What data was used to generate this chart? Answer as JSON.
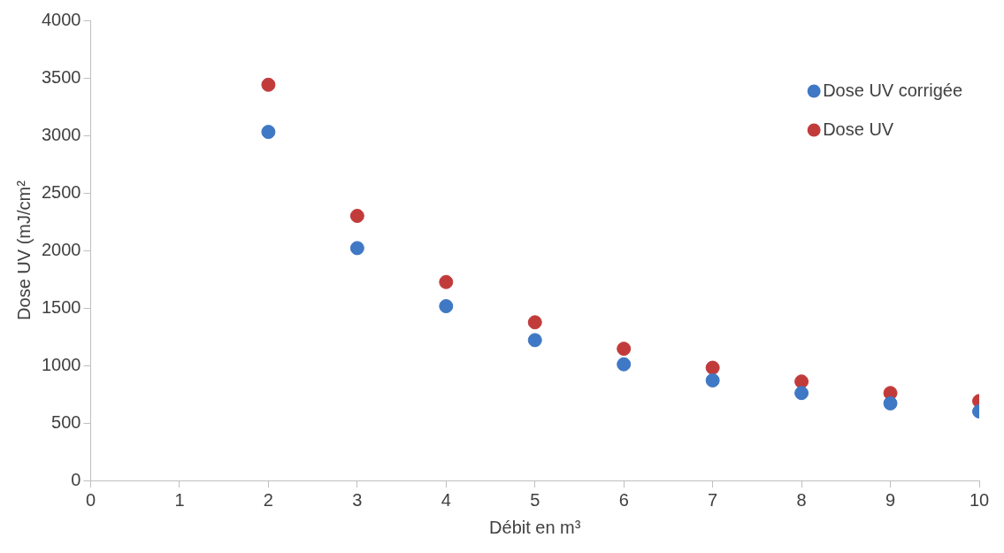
{
  "chart_data": {
    "type": "scatter",
    "xlabel": "Débit en m³",
    "ylabel": "Dose UV (mJ/cm²",
    "x": [
      2,
      3,
      4,
      5,
      6,
      7,
      8,
      9,
      10
    ],
    "series": [
      {
        "name": "Dose UV corrigée",
        "color": "#3f78c4",
        "values": [
          3030,
          2020,
          1515,
          1220,
          1010,
          870,
          760,
          670,
          600
        ]
      },
      {
        "name": "Dose UV",
        "color": "#c23b3b",
        "values": [
          3440,
          2300,
          1725,
          1375,
          1145,
          980,
          860,
          760,
          690
        ]
      }
    ],
    "xlim": [
      0,
      10
    ],
    "xticks": [
      0,
      1,
      2,
      3,
      4,
      5,
      6,
      7,
      8,
      9,
      10
    ],
    "ylim": [
      0,
      4000
    ],
    "yticks": [
      0,
      500,
      1000,
      1500,
      2000,
      2500,
      3000,
      3500,
      4000
    ],
    "grid": false,
    "legend": "top right",
    "marker": "circle"
  }
}
